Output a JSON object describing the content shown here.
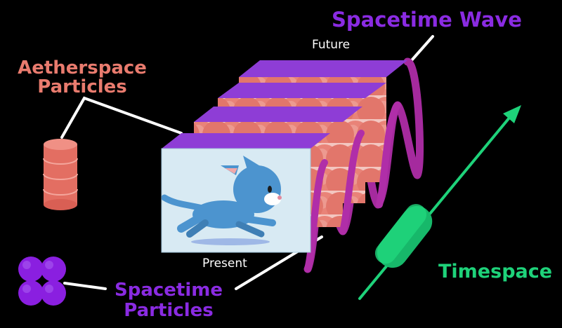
{
  "labels": {
    "spacetime_wave": "Spacetime Wave",
    "future": "Future",
    "aetherspace_particles_line1": "Aetherspace",
    "aetherspace_particles_line2": "Particles",
    "present": "Present",
    "timespace": "Timespace",
    "spacetime_particles_line1": "Spacetime",
    "spacetime_particles_line2": "Particles"
  },
  "colors": {
    "background": "#000000",
    "spacetime_purple": "#8a2be2",
    "wave_magenta": "#a52a9e",
    "aether_salmon": "#e97b6e",
    "timespace_green": "#1ed27a",
    "frame_top": "#8e3dd6",
    "frame_face": "#d8eaf3",
    "cat_blue": "#4c94cf"
  },
  "icons": {
    "aether_stack": "cylinder-stack-icon",
    "spacetime_cluster": "four-sphere-cluster-icon",
    "timespace_capsule": "capsule-icon",
    "cat": "running-cat-icon",
    "time_arrow": "arrow-up-right-icon"
  }
}
